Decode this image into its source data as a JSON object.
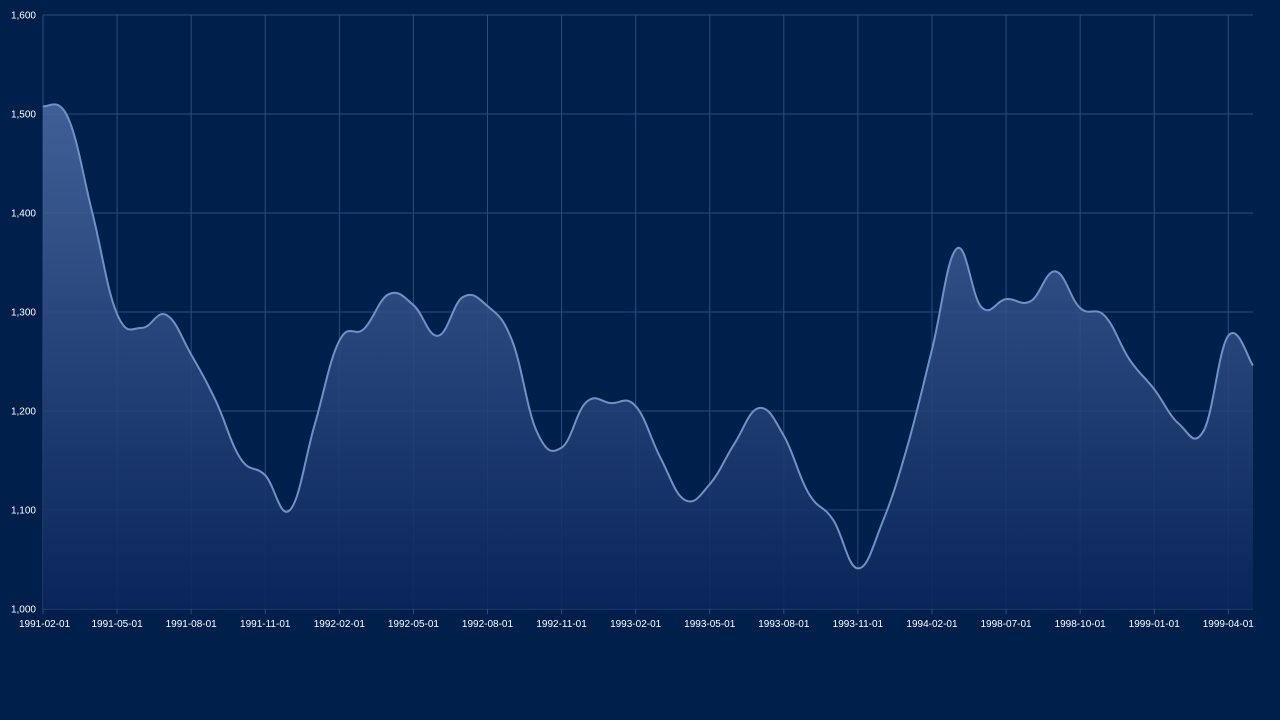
{
  "colors": {
    "background": "#001f4a",
    "grid": "#2f4c7e",
    "line": "#6f92c6",
    "area_top": "#4a6aa3",
    "area_bottom": "#0a255a",
    "tick_text": "#ffffff"
  },
  "chart_data": {
    "type": "area",
    "title": "",
    "xlabel": "",
    "ylabel": "",
    "ylim": [
      1000,
      1600
    ],
    "yticks": [
      1000,
      1100,
      1200,
      1300,
      1400,
      1500,
      1600
    ],
    "ytick_labels": [
      "1,000",
      "1,100",
      "1,200",
      "1,300",
      "1,400",
      "1,500",
      "1,600"
    ],
    "grid": true,
    "legend": "none",
    "categories": [
      "1991-02-01",
      "1991-03-01",
      "1991-04-01",
      "1991-05-01",
      "1991-06-01",
      "1991-07-01",
      "1991-08-01",
      "1991-09-01",
      "1991-10-01",
      "1991-11-01",
      "1991-12-01",
      "1992-01-01",
      "1992-02-01",
      "1992-03-01",
      "1992-04-01",
      "1992-05-01",
      "1992-06-01",
      "1992-07-01",
      "1992-08-01",
      "1992-09-01",
      "1992-10-01",
      "1992-11-01",
      "1992-12-01",
      "1993-01-01",
      "1993-02-01",
      "1993-03-01",
      "1993-04-01",
      "1993-05-01",
      "1993-06-01",
      "1993-07-01",
      "1993-08-01",
      "1993-09-01",
      "1993-10-01",
      "1993-11-01",
      "1993-12-01",
      "1994-01-01",
      "1994-02-01",
      "1994-03-01",
      "1998-06-01",
      "1998-07-01",
      "1998-08-01",
      "1998-09-01",
      "1998-10-01",
      "1998-11-01",
      "1998-12-01",
      "1999-01-01",
      "1999-02-01",
      "1999-03-01",
      "1999-04-01",
      "1999-05-01"
    ],
    "xtick_labels": [
      "1991-02-01",
      "1991-05-01",
      "1991-08-01",
      "1991-11-01",
      "1992-02-01",
      "1992-05-01",
      "1992-08-01",
      "1992-11-01",
      "1993-02-01",
      "1993-05-01",
      "1993-08-01",
      "1993-11-01",
      "1994-02-01",
      "1998-07-01",
      "1998-10-01",
      "1999-01-01",
      "1999-04-01"
    ],
    "series": [
      {
        "values": [
          1508,
          1497,
          1400,
          1298,
          1284,
          1297,
          1257,
          1210,
          1152,
          1135,
          1100,
          1186,
          1271,
          1283,
          1318,
          1307,
          1276,
          1315,
          1306,
          1271,
          1179,
          1163,
          1209,
          1208,
          1205,
          1153,
          1110,
          1126,
          1167,
          1203,
          1175,
          1117,
          1090,
          1041,
          1088,
          1164,
          1262,
          1364,
          1305,
          1313,
          1311,
          1341,
          1304,
          1296,
          1252,
          1222,
          1187,
          1180,
          1276,
          1246
        ]
      }
    ]
  }
}
